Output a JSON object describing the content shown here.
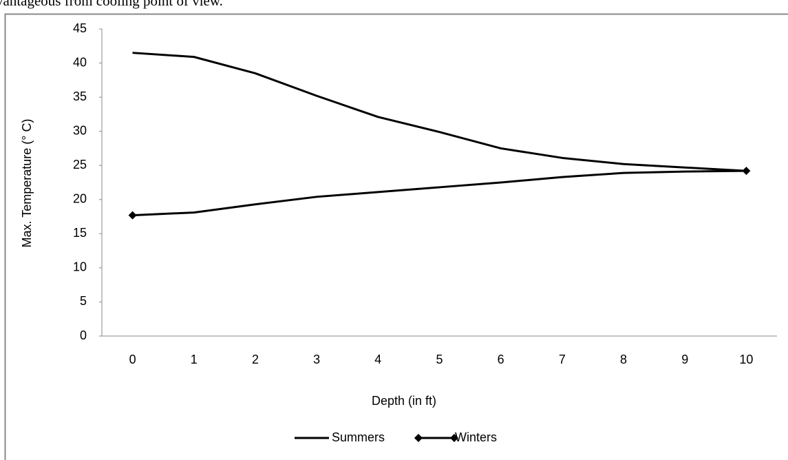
{
  "header_text": "vantageous from cooling point of view.",
  "chart_data": {
    "type": "line",
    "x_label": "Depth (in ft)",
    "y_label": "Max. Temperature (° C)",
    "categories": [
      0,
      1,
      2,
      3,
      4,
      5,
      6,
      7,
      8,
      9,
      10
    ],
    "series": [
      {
        "name": "Summers",
        "color": "#000000",
        "values": [
          41.5,
          40.9,
          38.5,
          35.2,
          32.1,
          29.9,
          27.5,
          26.1,
          25.2,
          24.7,
          24.2
        ]
      },
      {
        "name": "Winters",
        "color": "#000000",
        "values": [
          17.7,
          18.1,
          19.3,
          20.4,
          21.1,
          21.8,
          22.5,
          23.3,
          23.9,
          24.1,
          24.2
        ]
      }
    ],
    "ylim": [
      0,
      45
    ],
    "yticks": [
      0,
      5,
      10,
      15,
      20,
      25,
      30,
      35,
      40,
      45
    ],
    "grid": false,
    "legend": "bottom"
  }
}
